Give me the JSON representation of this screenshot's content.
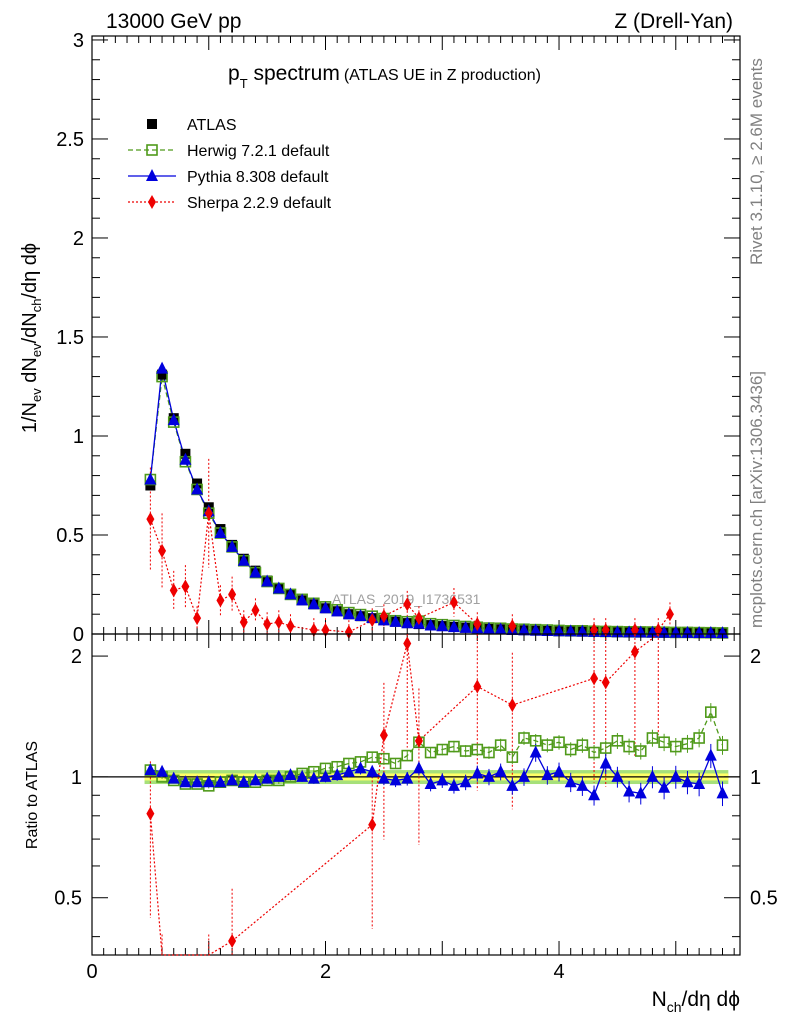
{
  "header": {
    "left": "13000 GeV pp",
    "right": "Z (Drell-Yan)"
  },
  "title_main": "p",
  "title_sub": "T",
  "title_rest": " spectrum",
  "title_note": "(ATLAS UE in Z production)",
  "ylabel_top": "1/N",
  "ylabel_bottom": "Ratio to ATLAS",
  "xlabel": "N",
  "side_text_top": "Rivet 3.1.10, ≥ 2.6M events",
  "side_text_bottom": "mcplots.cern.ch [arXiv:1306.3436]",
  "watermark": "ATLAS_2019_I1736531",
  "colors": {
    "data": "#000000",
    "herwig": "#4f9a1a",
    "pythia": "#0000dd",
    "sherpa": "#ee0000",
    "band_inner": "#ffff66",
    "band_outer": "#a6e07a"
  },
  "chart_data": {
    "type": "scatter",
    "x": [
      0.5,
      0.6,
      0.7,
      0.8,
      0.9,
      1.0,
      1.1,
      1.2,
      1.3,
      1.4,
      1.5,
      1.6,
      1.7,
      1.8,
      1.9,
      2.0,
      2.1,
      2.2,
      2.3,
      2.4,
      2.5,
      2.6,
      2.7,
      2.8,
      2.9,
      3.0,
      3.1,
      3.2,
      3.3,
      3.4,
      3.5,
      3.6,
      3.7,
      3.8,
      3.9,
      4.0,
      4.1,
      4.2,
      4.3,
      4.4,
      4.5,
      4.6,
      4.7,
      4.8,
      4.9,
      5.0,
      5.1,
      5.2,
      5.3,
      5.4
    ],
    "main": {
      "xlim": [
        0,
        5.55
      ],
      "ylim": [
        0,
        3.02
      ],
      "yticks": [
        "0",
        "0.5",
        "1",
        "1.5",
        "2",
        "2.5",
        "3"
      ],
      "series": [
        {
          "name": "ATLAS",
          "values": [
            0.75,
            1.31,
            1.09,
            0.91,
            0.76,
            0.64,
            0.53,
            0.45,
            0.38,
            0.32,
            0.27,
            0.23,
            0.2,
            0.17,
            0.15,
            0.13,
            0.115,
            0.1,
            0.09,
            0.08,
            0.07,
            0.062,
            0.055,
            0.05,
            0.045,
            0.04,
            0.036,
            0.032,
            0.029,
            0.026,
            0.024,
            0.021,
            0.019,
            0.017,
            0.016,
            0.014,
            0.013,
            0.012,
            0.011,
            0.01,
            0.009,
            0.0085,
            0.008,
            0.0075,
            0.007,
            0.0065,
            0.006,
            0.0055,
            0.005,
            0.0045
          ]
        },
        {
          "name": "Herwig 7.2.1 default",
          "values": [
            0.78,
            1.3,
            1.07,
            0.87,
            0.73,
            0.61,
            0.51,
            0.44,
            0.37,
            0.31,
            0.265,
            0.23,
            0.2,
            0.175,
            0.155,
            0.137,
            0.122,
            0.108,
            0.098,
            0.09,
            0.078,
            0.067,
            0.062,
            0.065,
            0.052,
            0.047,
            0.043,
            0.038,
            0.034,
            0.03,
            0.029,
            0.025,
            0.024,
            0.022,
            0.02,
            0.018,
            0.016,
            0.016,
            0.014,
            0.013,
            0.012,
            0.011,
            0.0105,
            0.01,
            0.009,
            0.008,
            0.008,
            0.007,
            0.0065,
            0.0055
          ]
        },
        {
          "name": "Pythia 8.308 default",
          "values": [
            0.78,
            1.34,
            1.08,
            0.88,
            0.73,
            0.62,
            0.51,
            0.44,
            0.37,
            0.31,
            0.265,
            0.23,
            0.2,
            0.17,
            0.15,
            0.13,
            0.114,
            0.1,
            0.091,
            0.081,
            0.069,
            0.061,
            0.054,
            0.052,
            0.043,
            0.039,
            0.035,
            0.031,
            0.029,
            0.026,
            0.023,
            0.02,
            0.019,
            0.017,
            0.015,
            0.014,
            0.013,
            0.012,
            0.011,
            0.01,
            0.009,
            0.008,
            0.0075,
            0.007,
            0.0065,
            0.006,
            0.0055,
            0.005,
            0.0048,
            0.0042
          ]
        },
        {
          "name": "Sherpa 2.2.9 default",
          "points": [
            [
              0.5,
              0.58
            ],
            [
              0.6,
              0.42
            ],
            [
              0.7,
              0.22
            ],
            [
              0.8,
              0.24
            ],
            [
              0.9,
              0.08
            ],
            [
              1.0,
              0.61
            ],
            [
              1.1,
              0.17
            ],
            [
              1.2,
              0.2
            ],
            [
              1.3,
              0.06
            ],
            [
              1.4,
              0.12
            ],
            [
              1.5,
              0.05
            ],
            [
              1.6,
              0.06
            ],
            [
              1.7,
              0.04
            ],
            [
              1.9,
              0.02
            ],
            [
              2.0,
              0.02
            ],
            [
              2.2,
              0.01
            ],
            [
              2.4,
              0.07
            ],
            [
              2.5,
              0.09
            ],
            [
              2.7,
              0.15
            ],
            [
              2.8,
              0.08
            ],
            [
              3.1,
              0.16
            ],
            [
              3.3,
              0.05
            ],
            [
              3.6,
              0.04
            ],
            [
              4.3,
              0.02
            ],
            [
              4.4,
              0.02
            ],
            [
              4.65,
              0.02
            ],
            [
              4.85,
              0.02
            ],
            [
              4.95,
              0.1
            ]
          ]
        }
      ]
    },
    "ratio": {
      "ylabel": "Ratio to ATLAS",
      "ylim": [
        0.36,
        2.27
      ],
      "yticks": [
        "0.5",
        "1",
        "2"
      ],
      "xticks": [
        "0",
        "2",
        "4"
      ],
      "band_inner": [
        0.98,
        1.02
      ],
      "band_outer": [
        0.96,
        1.04
      ],
      "series": [
        {
          "name": "Herwig 7.2.1 default",
          "values": [
            1.04,
            1.0,
            0.98,
            0.96,
            0.96,
            0.95,
            0.97,
            0.98,
            0.97,
            0.97,
            0.98,
            0.98,
            1.0,
            1.02,
            1.03,
            1.05,
            1.06,
            1.08,
            1.09,
            1.12,
            1.11,
            1.08,
            1.13,
            1.22,
            1.15,
            1.17,
            1.19,
            1.16,
            1.17,
            1.15,
            1.2,
            1.12,
            1.25,
            1.23,
            1.2,
            1.22,
            1.17,
            1.2,
            1.15,
            1.18,
            1.23,
            1.19,
            1.16,
            1.25,
            1.22,
            1.19,
            1.21,
            1.25,
            1.45,
            1.2
          ]
        },
        {
          "name": "Pythia 8.308 default",
          "values": [
            1.04,
            1.03,
            0.99,
            0.97,
            0.97,
            0.97,
            0.97,
            0.98,
            0.97,
            0.98,
            0.99,
            1.0,
            1.01,
            1.0,
            0.99,
            1.0,
            1.01,
            1.03,
            1.05,
            1.03,
            0.99,
            0.98,
            0.99,
            1.05,
            0.96,
            0.98,
            0.95,
            0.97,
            1.02,
            1.0,
            1.03,
            0.95,
            1.0,
            1.15,
            1.01,
            1.03,
            0.97,
            0.95,
            0.9,
            1.08,
            1.0,
            0.92,
            0.91,
            1.0,
            0.94,
            1.0,
            0.97,
            0.96,
            1.13,
            0.91
          ]
        },
        {
          "name": "Sherpa 2.2.9 default",
          "points": [
            [
              0.5,
              0.81
            ],
            [
              0.6,
              0.3
            ],
            [
              1.0,
              0.3
            ],
            [
              1.2,
              0.39
            ],
            [
              2.4,
              0.76
            ],
            [
              2.5,
              1.27
            ],
            [
              2.7,
              2.15
            ],
            [
              2.8,
              1.23
            ],
            [
              3.3,
              1.68
            ],
            [
              3.6,
              1.51
            ],
            [
              4.3,
              1.76
            ],
            [
              4.4,
              1.72
            ],
            [
              4.65,
              2.05
            ],
            [
              4.85,
              2.31
            ]
          ]
        }
      ]
    }
  }
}
